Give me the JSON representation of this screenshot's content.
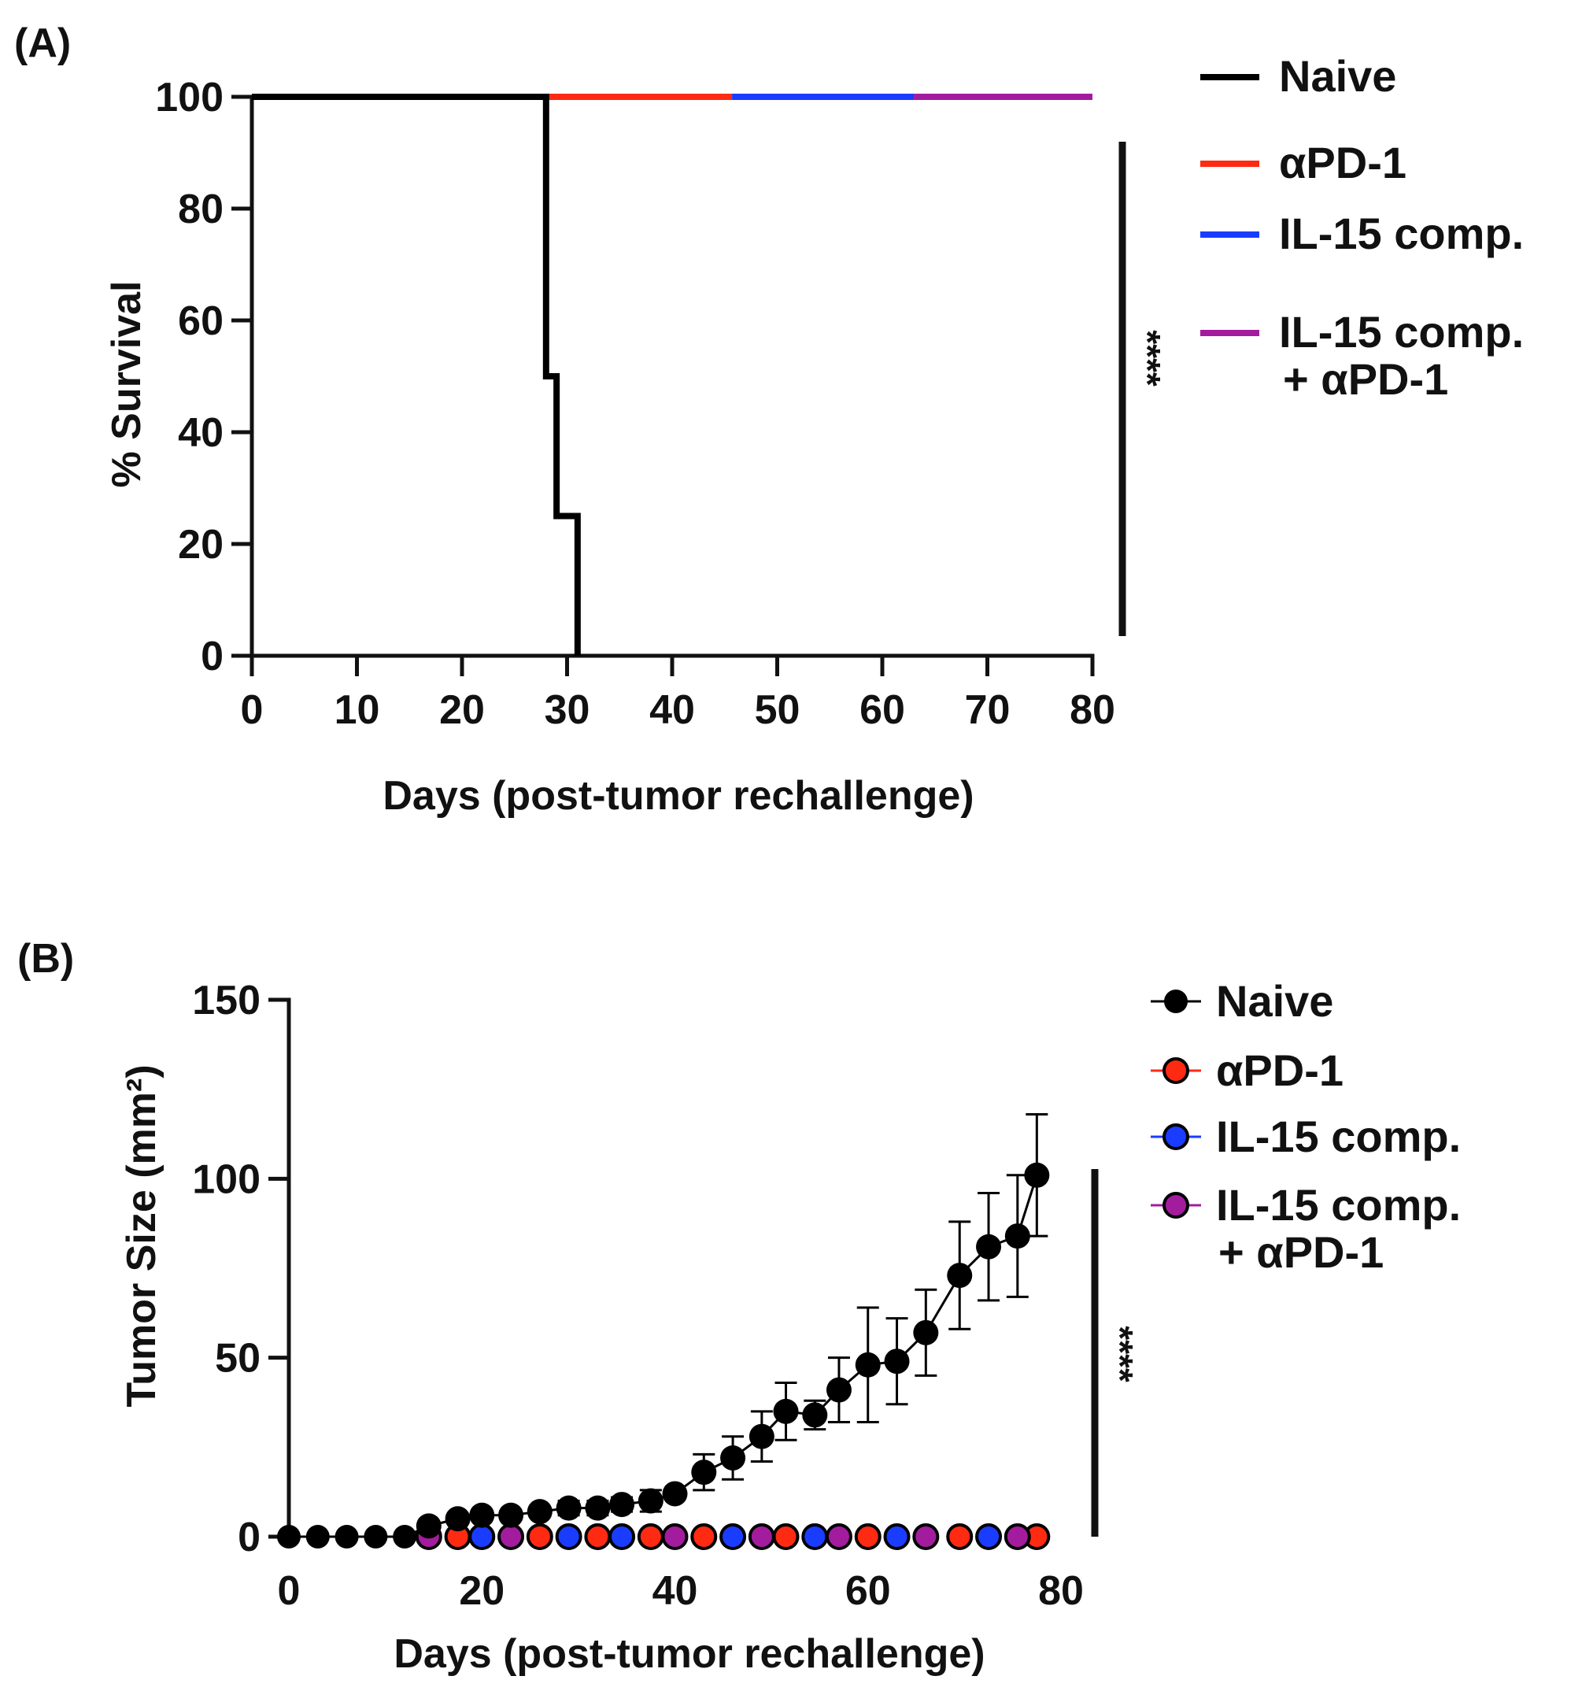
{
  "colors": {
    "axis": "#111111",
    "naive": "#000000",
    "apd1": "#ff2a12",
    "il15": "#1a3cff",
    "combo": "#a31c9e"
  },
  "chart_data": [
    {
      "panel": "(A)",
      "type": "line",
      "subtype": "kaplan-meier",
      "xlabel": "Days (post-tumor rechallenge)",
      "ylabel": "% Survival",
      "xlim": [
        0,
        80
      ],
      "ylim": [
        0,
        100
      ],
      "xticks": [
        "0",
        "10",
        "20",
        "30",
        "40",
        "50",
        "60",
        "70",
        "80"
      ],
      "yticks": [
        "0",
        "20",
        "40",
        "60",
        "80",
        "100"
      ],
      "significance": "****",
      "legend_position": "top-right",
      "series": [
        {
          "name": "Naive",
          "color_key": "naive",
          "steps": [
            [
              0,
              100
            ],
            [
              28,
              100
            ],
            [
              28,
              50
            ],
            [
              29,
              50
            ],
            [
              29,
              25
            ],
            [
              31,
              25
            ],
            [
              31,
              0
            ]
          ]
        },
        {
          "name": "αPD-1",
          "color_key": "apd1",
          "steps": [
            [
              28,
              100
            ],
            [
              45.7,
              100
            ]
          ]
        },
        {
          "name": "IL-15 comp.",
          "color_key": "il15",
          "steps": [
            [
              45.7,
              100
            ],
            [
              63,
              100
            ]
          ]
        },
        {
          "name": "IL-15 comp.\n+ αPD-1",
          "legend_lines": [
            "IL-15 comp.",
            "+ αPD-1"
          ],
          "color_key": "combo",
          "steps": [
            [
              63,
              100
            ],
            [
              80,
              100
            ]
          ]
        }
      ]
    },
    {
      "panel": "(B)",
      "type": "line",
      "subtype": "errorbar",
      "xlabel": "Days (post-tumor rechallenge)",
      "ylabel": "Tumor Size (mm²)",
      "xlim": [
        0,
        80
      ],
      "ylim": [
        0,
        150
      ],
      "xticks": [
        "0",
        "20",
        "40",
        "60",
        "80"
      ],
      "yticks": [
        "0",
        "50",
        "100",
        "150"
      ],
      "significance": "****",
      "legend_position": "top-right",
      "naive": {
        "name": "Naive",
        "color_key": "naive",
        "x": [
          0,
          3,
          6,
          9,
          12,
          14.5,
          17.5,
          20,
          23,
          26,
          29,
          32,
          34.5,
          37.5,
          40,
          43,
          46,
          49,
          51.5,
          54.5,
          57,
          60,
          63,
          66,
          69.5,
          72.5,
          75.5,
          77.5
        ],
        "y": [
          0,
          0,
          0,
          0,
          0,
          3,
          5,
          6,
          6,
          7,
          8,
          8,
          9,
          10,
          12,
          18,
          22,
          28,
          35,
          34,
          41,
          48,
          49,
          57,
          73,
          81,
          84,
          101
        ],
        "err": [
          0,
          0,
          0,
          0,
          0,
          1,
          1,
          1,
          1,
          1,
          2,
          2,
          2,
          3,
          1,
          5,
          6,
          7,
          8,
          4,
          9,
          16,
          12,
          12,
          15,
          15,
          17,
          17
        ]
      },
      "treated": [
        {
          "name": "αPD-1",
          "color_key": "apd1",
          "x": [
            17.5,
            26,
            32,
            37.5,
            43,
            51.5,
            60,
            69.5,
            77.5
          ]
        },
        {
          "name": "IL-15 comp.",
          "color_key": "il15",
          "x": [
            20,
            29,
            34.5,
            46,
            54.5,
            63,
            72.5
          ]
        },
        {
          "name": "IL-15 comp.\n+ αPD-1",
          "legend_lines": [
            "IL-15 comp.",
            "+ αPD-1"
          ],
          "color_key": "combo",
          "x": [
            14.5,
            23,
            40,
            49,
            57,
            66,
            75.5
          ]
        }
      ]
    }
  ]
}
